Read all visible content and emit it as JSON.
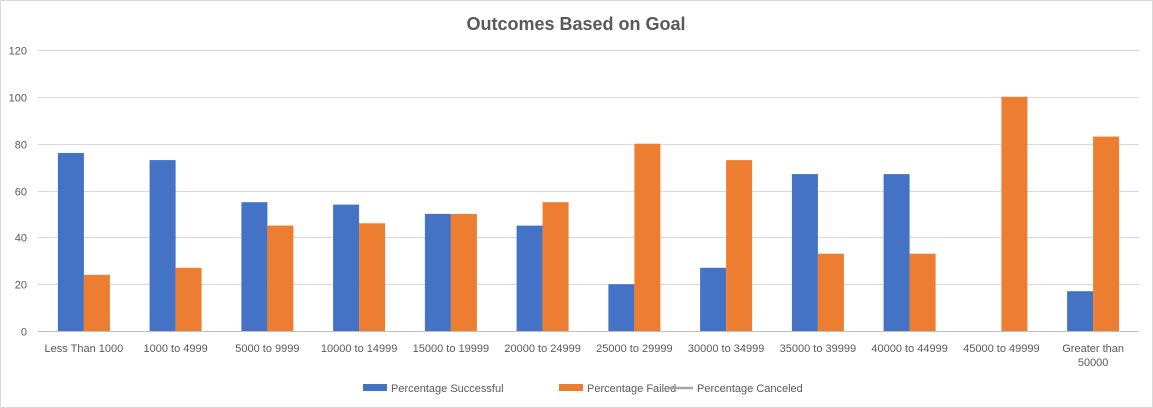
{
  "chart_data": {
    "type": "bar",
    "title": "Outcomes Based on Goal",
    "xlabel": "",
    "ylabel": "",
    "ylim": [
      0,
      120
    ],
    "yticks": [
      0,
      20,
      40,
      60,
      80,
      100,
      120
    ],
    "grid": true,
    "legend_position": "bottom",
    "categories": [
      "Less Than 1000",
      "1000 to 4999",
      "5000 to 9999",
      "10000 to 14999",
      "15000 to 19999",
      "20000 to 24999",
      "25000 to 29999",
      "30000 to 34999",
      "35000 to 39999",
      "40000 to 44999",
      "45000 to 49999",
      "Greater than 50000"
    ],
    "series": [
      {
        "name": "Percentage Successful",
        "color": "#4472c4",
        "values": [
          76,
          73,
          55,
          54,
          50,
          45,
          20,
          27,
          67,
          67,
          0,
          17
        ]
      },
      {
        "name": "Percentage Failed",
        "color": "#ed7d31",
        "values": [
          24,
          27,
          45,
          46,
          50,
          55,
          80,
          73,
          33,
          33,
          100,
          83
        ]
      },
      {
        "name": "Percentage Canceled",
        "color": "#a5a5a5",
        "values": [
          0,
          0,
          0,
          0,
          0,
          0,
          0,
          0,
          0,
          0,
          0,
          0
        ]
      }
    ]
  }
}
